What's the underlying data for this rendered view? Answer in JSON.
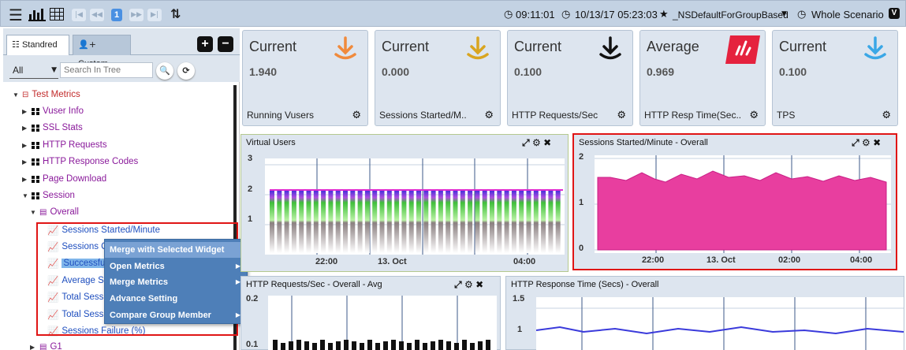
{
  "toolbar": {
    "page_number": "1",
    "time": "09:11:01",
    "datetime": "10/13/17 05:23:03",
    "favorite": "_NSDefaultForGroupBased",
    "scenario": "Whole Scenario"
  },
  "left_panel": {
    "tabs": [
      {
        "label": "Standred",
        "active": true
      },
      {
        "label": "Custom",
        "active": false
      }
    ],
    "filter_value": "All",
    "search_placeholder": "Search In Tree",
    "tree": {
      "root": "Test Metrics",
      "groups": [
        "Vuser Info",
        "SSL Stats",
        "HTTP Requests",
        "HTTP Response Codes",
        "Page Download",
        "Session"
      ],
      "session_child": "Overall",
      "overall_items": [
        "Sessions Started/Minute",
        "Sessions Co",
        "Successful",
        "Average Se",
        "Total Sessio",
        "Total Sessio",
        "Sessions Failure (%)"
      ],
      "next_node": "G1"
    }
  },
  "context_menu": {
    "items": [
      {
        "label": "Merge with Selected Widget",
        "submenu": false,
        "highlighted": true
      },
      {
        "label": "Open Metrics",
        "submenu": true,
        "highlighted": false
      },
      {
        "label": "Merge Metrics",
        "submenu": true,
        "highlighted": false
      },
      {
        "label": "Advance Setting",
        "submenu": false,
        "highlighted": false
      },
      {
        "label": "Compare Group Member",
        "submenu": true,
        "highlighted": false
      }
    ]
  },
  "metric_cards": [
    {
      "kind": "Current",
      "value": "1.940",
      "label": "Running Vusers",
      "icon": "download-arrow-icon",
      "color": "#f08a3c"
    },
    {
      "kind": "Current",
      "value": "0.000",
      "label": "Sessions Started/M..",
      "icon": "download-arrow-icon",
      "color": "#d9a520"
    },
    {
      "kind": "Current",
      "value": "0.100",
      "label": "HTTP Requests/Sec",
      "icon": "download-arrow-icon",
      "color": "#111111"
    },
    {
      "kind": "Average",
      "value": "0.969",
      "label": "HTTP Resp Time(Sec..",
      "icon": "bar-chart-icon",
      "color": "#e5223e"
    },
    {
      "kind": "Current",
      "value": "0.100",
      "label": "TPS",
      "icon": "download-arrow-icon",
      "color": "#3aa7e6"
    }
  ],
  "charts": {
    "virtual_users": {
      "title": "Virtual Users",
      "y_ticks": [
        "3",
        "2",
        "1"
      ],
      "x_ticks": [
        "22:00",
        "13. Oct",
        "04:00"
      ]
    },
    "sessions_started": {
      "title": "Sessions Started/Minute - Overall",
      "y_ticks": [
        "2",
        "1",
        "0"
      ],
      "x_ticks": [
        "22:00",
        "13. Oct",
        "02:00",
        "04:00"
      ],
      "color": "#e83e9f"
    },
    "http_requests": {
      "title": "HTTP Requests/Sec - Overall - Avg",
      "y_ticks": [
        "0.2",
        "0.1"
      ]
    },
    "http_response": {
      "title": "HTTP Response Time (Secs) - Overall",
      "y_ticks": [
        "1.5",
        "1"
      ],
      "color": "#3a3adb"
    }
  }
}
